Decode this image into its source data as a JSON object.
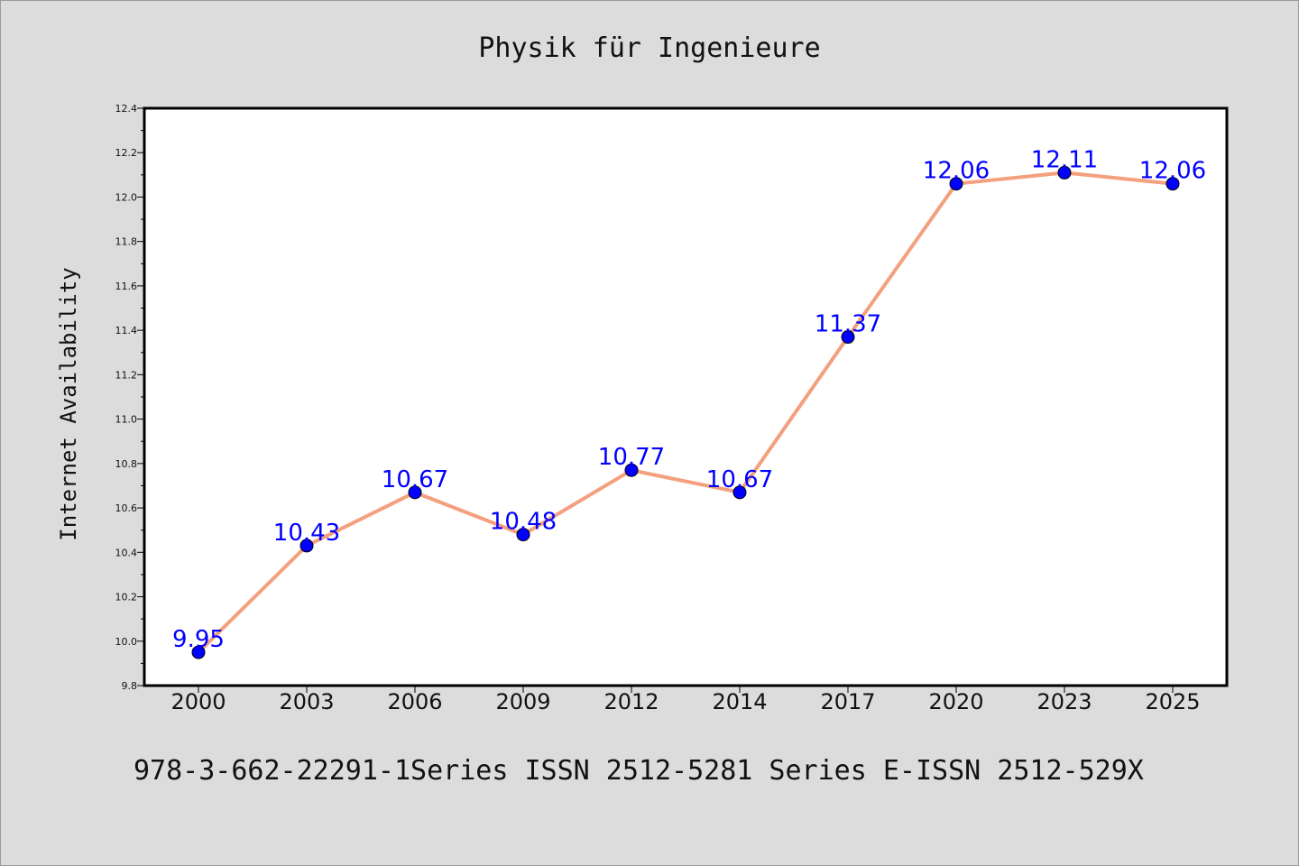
{
  "chart_data": {
    "type": "line",
    "title": "Physik für Ingenieure",
    "xlabel": "",
    "ylabel": "Internet Availability",
    "categories": [
      "2000",
      "2003",
      "2006",
      "2009",
      "2012",
      "2014",
      "2017",
      "2020",
      "2023",
      "2025"
    ],
    "series": [
      {
        "values": [
          9.95,
          10.43,
          10.67,
          10.48,
          10.77,
          10.67,
          11.37,
          12.06,
          12.11,
          12.06
        ],
        "labels": [
          "9.95",
          "10.43",
          "10.67",
          "10.48",
          "10.77",
          "10.67",
          "11.37",
          "12.06",
          "12.11",
          "12.06"
        ]
      }
    ],
    "ylim": [
      9.8,
      12.4
    ],
    "yticks": [
      "9.8",
      "10.0",
      "10.2",
      "10.4",
      "10.6",
      "10.8",
      "11.0",
      "11.2",
      "11.4",
      "11.6",
      "11.8",
      "12.0",
      "12.2",
      "12.4"
    ],
    "grid": false,
    "legend": "none",
    "colors": {
      "line": "#f4a07e",
      "marker": "#0000ff",
      "data_label": "#0000ff",
      "background": "#dcdcdc",
      "plot_background": "#ffffff"
    }
  },
  "footer": {
    "text": "978-3-662-22291-1Series ISSN 2512-5281 Series E-ISSN 2512-529X"
  }
}
